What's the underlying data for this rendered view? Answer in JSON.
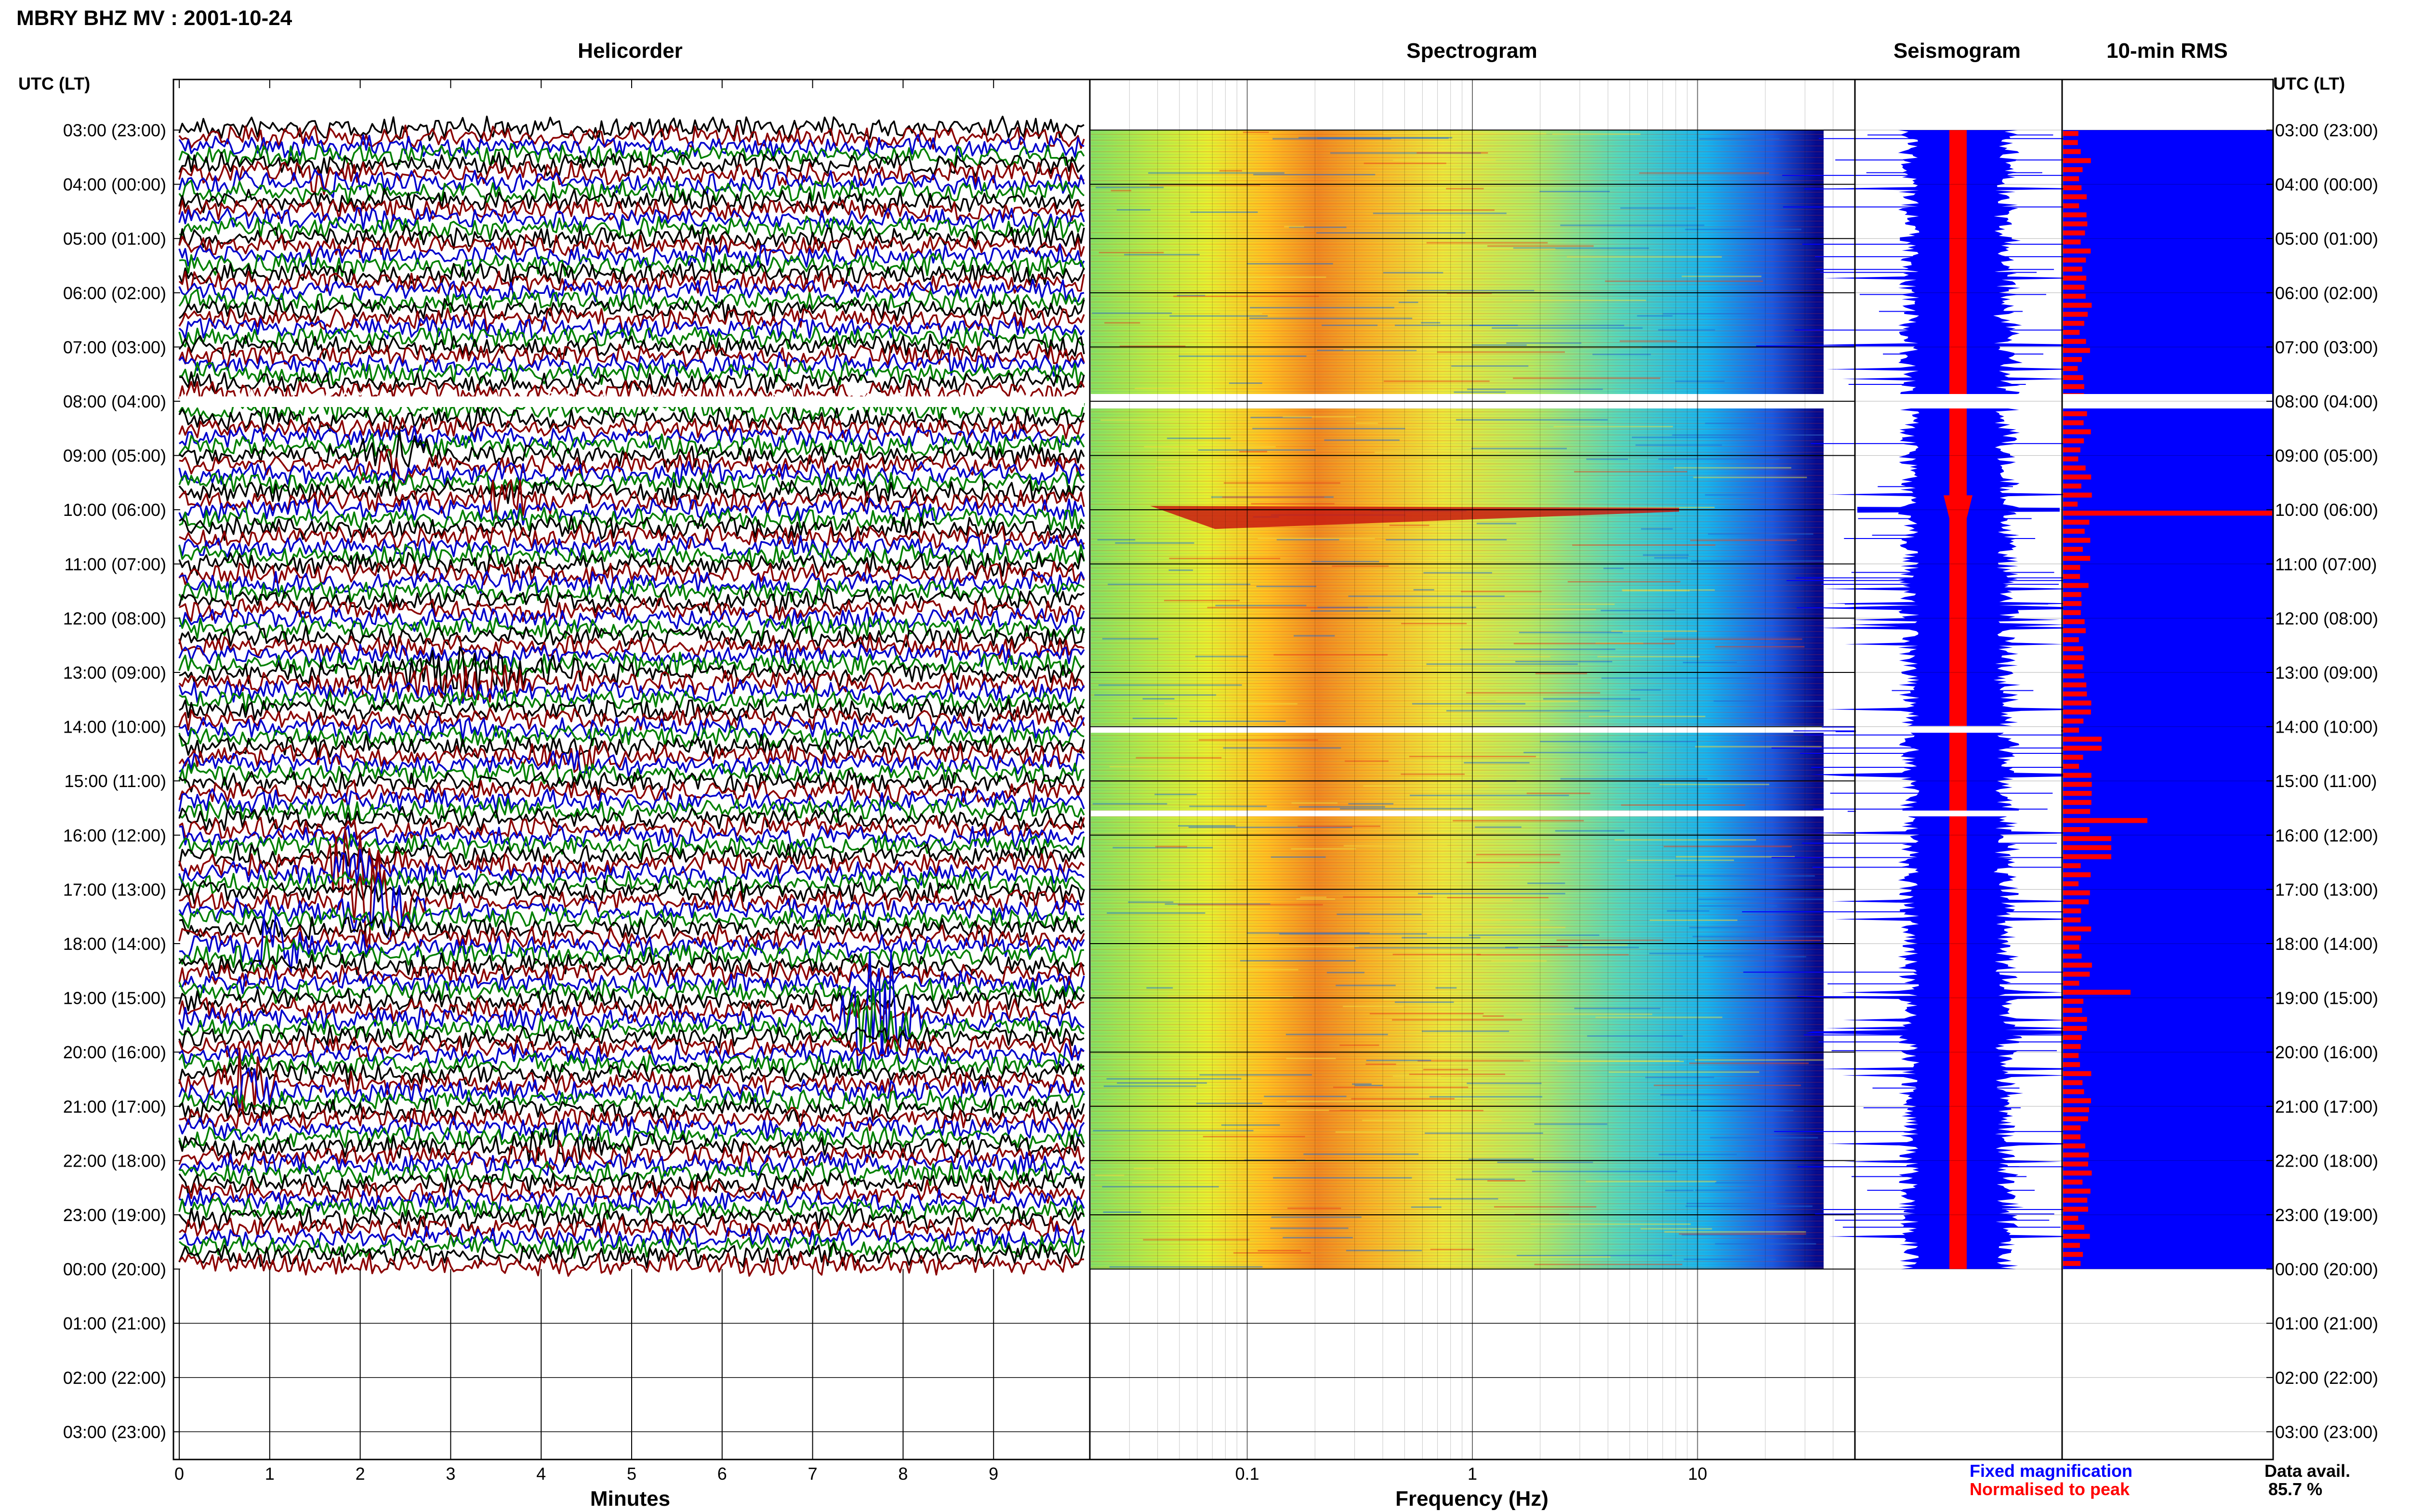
{
  "header": {
    "title": "MBRY BHZ MV : 2001-10-24",
    "utc_left": "UTC (LT)",
    "utc_right": "UTC (LT)"
  },
  "panels": {
    "helicorder": "Helicorder",
    "spectrogram": "Spectrogram",
    "seismogram": "Seismogram",
    "rms": "10-min RMS"
  },
  "time_labels": [
    "03:00 (23:00)",
    "04:00 (00:00)",
    "05:00 (01:00)",
    "06:00 (02:00)",
    "07:00 (03:00)",
    "08:00 (04:00)",
    "09:00 (05:00)",
    "10:00 (06:00)",
    "11:00 (07:00)",
    "12:00 (08:00)",
    "13:00 (09:00)",
    "14:00 (10:00)",
    "15:00 (11:00)",
    "16:00 (12:00)",
    "17:00 (13:00)",
    "18:00 (14:00)",
    "19:00 (15:00)",
    "20:00 (16:00)",
    "21:00 (17:00)",
    "22:00 (18:00)",
    "23:00 (19:00)",
    "00:00 (20:00)",
    "01:00 (21:00)",
    "02:00 (22:00)",
    "03:00 (23:00)"
  ],
  "legend": {
    "fixed": "Fixed magnification",
    "normalised": "Normalised to peak",
    "avail_label": "Data avail.",
    "avail_value": "85.7 %"
  },
  "colors": {
    "trace_cycle": [
      "#000000",
      "#8b0000",
      "#0000cc",
      "#008000"
    ],
    "fixed": "#0000ff",
    "normalised": "#ff0000"
  },
  "chart_data": [
    {
      "type": "line",
      "title": "Helicorder",
      "xlabel": "Minutes",
      "x_ticks": [
        "0",
        "1",
        "2",
        "3",
        "4",
        "5",
        "6",
        "7",
        "8",
        "9"
      ],
      "xlim": [
        0,
        10
      ],
      "ylim_utc_hours": [
        "03:00",
        "03:00"
      ],
      "data_span_utc": [
        "03:00",
        "00:00"
      ],
      "gaps_utc": [
        "08:00"
      ],
      "series_colors": [
        "black",
        "dark red",
        "blue",
        "green"
      ]
    },
    {
      "type": "heatmap",
      "title": "Spectrogram",
      "xlabel": "Frequency (Hz)",
      "x_scale": "log",
      "x_ticks": [
        "0.1",
        "1",
        "10"
      ],
      "xlim": [
        0.02,
        50
      ],
      "data_span_utc": [
        "03:00",
        "00:00"
      ],
      "gaps_utc": [
        "08:00",
        "14:00",
        "15:25"
      ],
      "colormap": "jet",
      "peak_energy_band_hz": [
        0.2,
        0.6
      ],
      "event_utc": "10:00"
    },
    {
      "type": "line",
      "title": "Seismogram",
      "series": [
        {
          "name": "Fixed magnification",
          "color": "#0000ff"
        },
        {
          "name": "Normalised to peak",
          "color": "#ff0000"
        }
      ],
      "data_span_utc": [
        "03:00",
        "00:00"
      ],
      "event_utc": "10:00"
    },
    {
      "type": "bar",
      "title": "10-min RMS",
      "orientation": "horizontal",
      "series": [
        {
          "name": "Fixed magnification",
          "color": "#0000ff"
        },
        {
          "name": "Normalised to peak",
          "color": "#ff0000"
        }
      ],
      "data_span_utc": [
        "03:00",
        "00:00"
      ],
      "peak_utc": [
        "10:00",
        "15:40",
        "18:50"
      ],
      "data_availability_percent": 85.7
    }
  ]
}
